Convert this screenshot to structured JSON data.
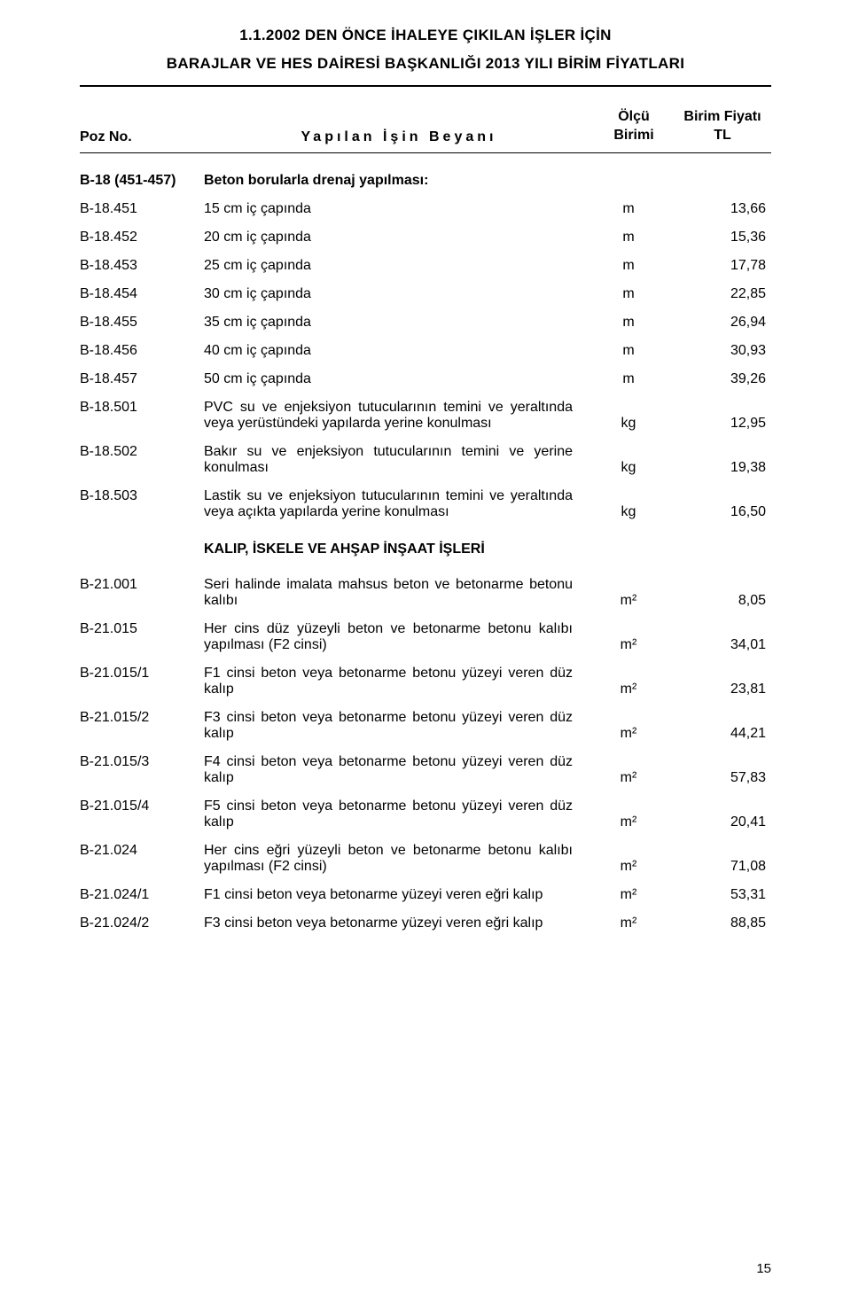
{
  "header": {
    "line1": "1.1.2002 DEN ÖNCE İHALEYE ÇIKILAN İŞLER İÇİN",
    "line2": "BARAJLAR VE HES DAİRESİ BAŞKANLIĞI 2013 YILI BİRİM FİYATLARI"
  },
  "columns": {
    "poz": "Poz No.",
    "desc": "Yapılan İşin Beyanı",
    "olcu_top": "Ölçü",
    "olcu_bottom": "Birimi",
    "fiyat_top": "Birim Fiyatı",
    "fiyat_bottom": "TL"
  },
  "section1": {
    "poz": "B-18 (451-457)",
    "desc": "Beton borularla drenaj yapılması:"
  },
  "rows1": [
    {
      "poz": "B-18.451",
      "desc": "15 cm iç çapında",
      "unit": "m",
      "price": "13,66"
    },
    {
      "poz": "B-18.452",
      "desc": "20 cm iç çapında",
      "unit": "m",
      "price": "15,36"
    },
    {
      "poz": "B-18.453",
      "desc": "25 cm iç çapında",
      "unit": "m",
      "price": "17,78"
    },
    {
      "poz": "B-18.454",
      "desc": "30 cm iç çapında",
      "unit": "m",
      "price": "22,85"
    },
    {
      "poz": "B-18.455",
      "desc": "35 cm iç çapında",
      "unit": "m",
      "price": "26,94"
    },
    {
      "poz": "B-18.456",
      "desc": "40 cm iç çapında",
      "unit": "m",
      "price": "30,93"
    },
    {
      "poz": "B-18.457",
      "desc": "50 cm iç çapında",
      "unit": "m",
      "price": "39,26"
    }
  ],
  "rows2": [
    {
      "poz": "B-18.501",
      "desc": "PVC su ve enjeksiyon tutucularının temini ve yeraltında veya yerüstündeki yapılarda yerine konulması",
      "unit": "kg",
      "price": "12,95"
    },
    {
      "poz": "B-18.502",
      "desc": "Bakır su ve enjeksiyon tutucularının temini ve yerine konulması",
      "unit": "kg",
      "price": "19,38"
    },
    {
      "poz": "B-18.503",
      "desc": "Lastik su ve enjeksiyon tutucularının temini ve yeraltında veya açıkta yapılarda yerine konulması",
      "unit": "kg",
      "price": "16,50"
    }
  ],
  "section_title": "KALIP, İSKELE VE AHŞAP İNŞAAT İŞLERİ",
  "rows3": [
    {
      "poz": "B-21.001",
      "desc": "Seri halinde imalata mahsus beton ve betonarme betonu kalıbı",
      "unit": "m²",
      "price": "8,05"
    },
    {
      "poz": "B-21.015",
      "desc": "Her cins düz yüzeyli beton ve betonarme betonu kalıbı yapılması (F2 cinsi)",
      "unit": "m²",
      "price": "34,01"
    },
    {
      "poz": "B-21.015/1",
      "desc": "F1 cinsi beton veya betonarme betonu yüzeyi veren düz kalıp",
      "unit": "m²",
      "price": "23,81"
    },
    {
      "poz": "B-21.015/2",
      "desc": "F3 cinsi beton veya betonarme betonu yüzeyi veren düz kalıp",
      "unit": "m²",
      "price": "44,21"
    },
    {
      "poz": "B-21.015/3",
      "desc": "F4 cinsi beton veya betonarme betonu yüzeyi veren düz kalıp",
      "unit": "m²",
      "price": "57,83"
    },
    {
      "poz": "B-21.015/4",
      "desc": "F5 cinsi beton veya betonarme betonu yüzeyi veren düz kalıp",
      "unit": "m²",
      "price": "20,41"
    },
    {
      "poz": "B-21.024",
      "desc": "Her cins eğri yüzeyli beton ve betonarme betonu kalıbı yapılması (F2 cinsi)",
      "unit": "m²",
      "price": "71,08"
    },
    {
      "poz": "B-21.024/1",
      "desc": "F1 cinsi beton veya betonarme yüzeyi veren eğri kalıp",
      "unit": "m²",
      "price": "53,31"
    },
    {
      "poz": "B-21.024/2",
      "desc": "F3 cinsi beton veya betonarme yüzeyi veren eğri kalıp",
      "unit": "m²",
      "price": "88,85"
    }
  ],
  "page_number": "15"
}
